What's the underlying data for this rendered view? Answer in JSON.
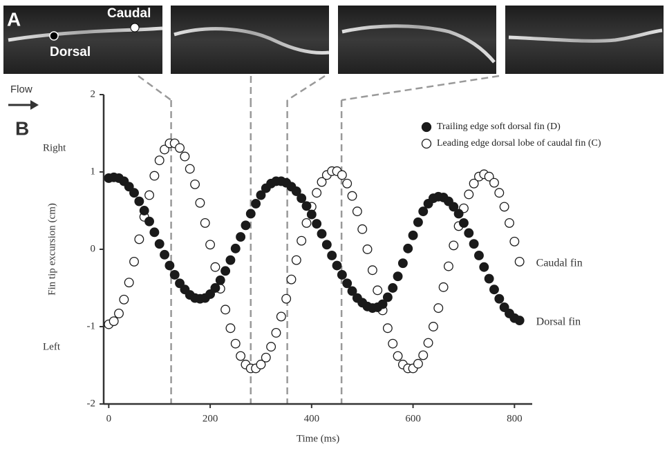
{
  "panel_a": {
    "label": "A",
    "photo_labels": [
      "Caudal",
      "Dorsal"
    ]
  },
  "panel_b": {
    "label": "B"
  },
  "flow_label": "Flow",
  "chart_data": {
    "type": "scatter",
    "xlabel": "Time (ms)",
    "ylabel": "Fin tip excursion (cm)",
    "side_labels": [
      "Right",
      "Left"
    ],
    "xlim": [
      -10,
      835
    ],
    "ylim": [
      -2,
      2
    ],
    "xticks": [
      0,
      200,
      400,
      600,
      800
    ],
    "yticks": [
      2,
      1,
      0,
      -1,
      -2
    ],
    "grid": false,
    "legend": "upper right",
    "frame_times": [
      123,
      280,
      352,
      459
    ],
    "x": [
      0,
      10,
      20,
      30,
      40,
      50,
      60,
      70,
      80,
      90,
      100,
      110,
      120,
      130,
      140,
      150,
      160,
      170,
      180,
      190,
      200,
      210,
      220,
      230,
      240,
      250,
      260,
      270,
      280,
      290,
      300,
      310,
      320,
      330,
      340,
      350,
      360,
      370,
      380,
      390,
      400,
      410,
      420,
      430,
      440,
      450,
      460,
      470,
      480,
      490,
      500,
      510,
      520,
      530,
      540,
      550,
      560,
      570,
      580,
      590,
      600,
      610,
      620,
      630,
      640,
      650,
      660,
      670,
      680,
      690,
      700,
      710,
      720,
      730,
      740,
      750,
      760,
      770,
      780,
      790,
      800,
      810
    ],
    "series": [
      {
        "name": "Trailing edge soft dorsal fin (D)",
        "end_label": "Dorsal fin",
        "color": "#1a1a1a",
        "filled": true,
        "values": [
          0.92,
          0.93,
          0.92,
          0.88,
          0.81,
          0.73,
          0.62,
          0.5,
          0.36,
          0.22,
          0.07,
          -0.07,
          -0.21,
          -0.33,
          -0.44,
          -0.52,
          -0.59,
          -0.63,
          -0.64,
          -0.63,
          -0.58,
          -0.5,
          -0.4,
          -0.28,
          -0.14,
          0.01,
          0.16,
          0.31,
          0.46,
          0.59,
          0.7,
          0.79,
          0.85,
          0.88,
          0.88,
          0.86,
          0.81,
          0.75,
          0.66,
          0.56,
          0.45,
          0.33,
          0.2,
          0.06,
          -0.08,
          -0.21,
          -0.33,
          -0.44,
          -0.54,
          -0.63,
          -0.69,
          -0.74,
          -0.76,
          -0.75,
          -0.71,
          -0.62,
          -0.5,
          -0.35,
          -0.18,
          0.01,
          0.18,
          0.35,
          0.49,
          0.59,
          0.66,
          0.68,
          0.67,
          0.62,
          0.55,
          0.46,
          0.34,
          0.21,
          0.07,
          -0.08,
          -0.23,
          -0.38,
          -0.52,
          -0.64,
          -0.75,
          -0.83,
          -0.89,
          -0.92
        ]
      },
      {
        "name": "Leading edge dorsal lobe of caudal fin (C)",
        "end_label": "Caudal fin",
        "color": "#1a1a1a",
        "filled": false,
        "values": [
          -0.97,
          -0.93,
          -0.83,
          -0.65,
          -0.43,
          -0.16,
          0.13,
          0.42,
          0.7,
          0.95,
          1.15,
          1.29,
          1.37,
          1.37,
          1.31,
          1.2,
          1.04,
          0.84,
          0.6,
          0.34,
          0.06,
          -0.23,
          -0.51,
          -0.78,
          -1.02,
          -1.22,
          -1.38,
          -1.49,
          -1.54,
          -1.54,
          -1.49,
          -1.4,
          -1.26,
          -1.08,
          -0.87,
          -0.64,
          -0.39,
          -0.14,
          0.11,
          0.34,
          0.55,
          0.73,
          0.87,
          0.96,
          1.01,
          1.01,
          0.96,
          0.85,
          0.69,
          0.49,
          0.26,
          0.0,
          -0.27,
          -0.53,
          -0.79,
          -1.02,
          -1.22,
          -1.38,
          -1.49,
          -1.54,
          -1.54,
          -1.48,
          -1.37,
          -1.21,
          -1.0,
          -0.76,
          -0.49,
          -0.22,
          0.05,
          0.3,
          0.53,
          0.71,
          0.85,
          0.94,
          0.97,
          0.94,
          0.86,
          0.73,
          0.55,
          0.34,
          0.1,
          -0.16
        ]
      }
    ]
  }
}
